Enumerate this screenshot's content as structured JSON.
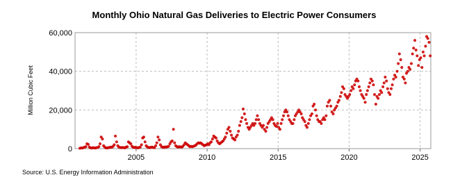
{
  "chart_data": {
    "type": "scatter",
    "title": "Monthly Ohio Natural Gas Deliveries to Electric Power Consumers",
    "y_label": "Million Cubic Feet",
    "source": "Source: U.S. Energy Information Administration",
    "color": "#cc0000",
    "grid": true,
    "xlim": [
      2000.7,
      2025.75
    ],
    "ylim": [
      0,
      60000
    ],
    "xticks": [
      2005,
      2010,
      2015,
      2020,
      2025
    ],
    "yticks": [
      0,
      {
        "value": 20000,
        "label": "20,000"
      },
      {
        "value": 40000,
        "label": "40,000"
      },
      {
        "value": 60000,
        "label": "60,000"
      }
    ],
    "x": [
      2001.04,
      2001.13,
      2001.21,
      2001.29,
      2001.38,
      2001.46,
      2001.54,
      2001.63,
      2001.71,
      2001.79,
      2001.88,
      2001.96,
      2002.04,
      2002.13,
      2002.21,
      2002.29,
      2002.38,
      2002.46,
      2002.54,
      2002.63,
      2002.71,
      2002.79,
      2002.88,
      2002.96,
      2003.04,
      2003.13,
      2003.21,
      2003.29,
      2003.38,
      2003.46,
      2003.54,
      2003.63,
      2003.71,
      2003.79,
      2003.88,
      2003.96,
      2004.04,
      2004.13,
      2004.21,
      2004.29,
      2004.38,
      2004.46,
      2004.54,
      2004.63,
      2004.71,
      2004.79,
      2004.88,
      2004.96,
      2005.04,
      2005.13,
      2005.21,
      2005.29,
      2005.38,
      2005.46,
      2005.54,
      2005.63,
      2005.71,
      2005.79,
      2005.88,
      2005.96,
      2006.04,
      2006.13,
      2006.21,
      2006.29,
      2006.38,
      2006.46,
      2006.54,
      2006.63,
      2006.71,
      2006.79,
      2006.88,
      2006.96,
      2007.04,
      2007.13,
      2007.21,
      2007.29,
      2007.38,
      2007.46,
      2007.54,
      2007.63,
      2007.71,
      2007.79,
      2007.88,
      2007.96,
      2008.04,
      2008.13,
      2008.21,
      2008.29,
      2008.38,
      2008.46,
      2008.54,
      2008.63,
      2008.71,
      2008.79,
      2008.88,
      2008.96,
      2009.04,
      2009.13,
      2009.21,
      2009.29,
      2009.38,
      2009.46,
      2009.54,
      2009.63,
      2009.71,
      2009.79,
      2009.88,
      2009.96,
      2010.04,
      2010.13,
      2010.21,
      2010.29,
      2010.38,
      2010.46,
      2010.54,
      2010.63,
      2010.71,
      2010.79,
      2010.88,
      2010.96,
      2011.04,
      2011.13,
      2011.21,
      2011.29,
      2011.38,
      2011.46,
      2011.54,
      2011.63,
      2011.71,
      2011.79,
      2011.88,
      2011.96,
      2012.04,
      2012.13,
      2012.21,
      2012.29,
      2012.38,
      2012.46,
      2012.54,
      2012.63,
      2012.71,
      2012.79,
      2012.88,
      2012.96,
      2013.04,
      2013.13,
      2013.21,
      2013.29,
      2013.38,
      2013.46,
      2013.54,
      2013.63,
      2013.71,
      2013.79,
      2013.88,
      2013.96,
      2014.04,
      2014.13,
      2014.21,
      2014.29,
      2014.38,
      2014.46,
      2014.54,
      2014.63,
      2014.71,
      2014.79,
      2014.88,
      2014.96,
      2015.04,
      2015.13,
      2015.21,
      2015.29,
      2015.38,
      2015.46,
      2015.54,
      2015.63,
      2015.71,
      2015.79,
      2015.88,
      2015.96,
      2016.04,
      2016.13,
      2016.21,
      2016.29,
      2016.38,
      2016.46,
      2016.54,
      2016.63,
      2016.71,
      2016.79,
      2016.88,
      2016.96,
      2017.04,
      2017.13,
      2017.21,
      2017.29,
      2017.38,
      2017.46,
      2017.54,
      2017.63,
      2017.71,
      2017.79,
      2017.88,
      2017.96,
      2018.04,
      2018.13,
      2018.21,
      2018.29,
      2018.38,
      2018.46,
      2018.54,
      2018.63,
      2018.71,
      2018.79,
      2018.88,
      2018.96,
      2019.04,
      2019.13,
      2019.21,
      2019.29,
      2019.38,
      2019.46,
      2019.54,
      2019.63,
      2019.71,
      2019.79,
      2019.88,
      2019.96,
      2020.04,
      2020.13,
      2020.21,
      2020.29,
      2020.38,
      2020.46,
      2020.54,
      2020.63,
      2020.71,
      2020.79,
      2020.88,
      2020.96,
      2021.04,
      2021.13,
      2021.21,
      2021.29,
      2021.38,
      2021.46,
      2021.54,
      2021.63,
      2021.71,
      2021.79,
      2021.88,
      2021.96,
      2022.04,
      2022.13,
      2022.21,
      2022.29,
      2022.38,
      2022.46,
      2022.54,
      2022.63,
      2022.71,
      2022.79,
      2022.88,
      2022.96,
      2023.04,
      2023.13,
      2023.21,
      2023.29,
      2023.38,
      2023.46,
      2023.54,
      2023.63,
      2023.71,
      2023.79,
      2023.88,
      2023.96,
      2024.04,
      2024.13,
      2024.21,
      2024.29,
      2024.38,
      2024.46,
      2024.54,
      2024.63,
      2024.71,
      2024.79,
      2024.88,
      2024.96,
      2025.04,
      2025.13,
      2025.21,
      2025.29,
      2025.38,
      2025.46,
      2025.54,
      2025.63,
      2025.71
    ],
    "values": [
      200,
      400,
      300,
      500,
      800,
      1000,
      2500,
      2200,
      800,
      400,
      300,
      500,
      400,
      300,
      500,
      600,
      1000,
      2500,
      6000,
      5000,
      1500,
      800,
      400,
      300,
      500,
      600,
      800,
      700,
      1200,
      2000,
      6500,
      3500,
      1500,
      800,
      600,
      500,
      600,
      500,
      400,
      800,
      1000,
      3500,
      3000,
      2500,
      1200,
      800,
      500,
      700,
      500,
      400,
      600,
      800,
      2000,
      5500,
      6000,
      3500,
      1500,
      900,
      600,
      500,
      700,
      800,
      600,
      500,
      1500,
      3000,
      6000,
      4500,
      2000,
      1000,
      800,
      600,
      900,
      800,
      1000,
      1200,
      2500,
      3500,
      4000,
      10000,
      3000,
      1500,
      1000,
      800,
      1000,
      900,
      800,
      1200,
      2000,
      3000,
      2500,
      2000,
      1500,
      1000,
      1200,
      1000,
      1200,
      1500,
      1800,
      2500,
      3000,
      2800,
      3000,
      2500,
      2000,
      1500,
      1800,
      2000,
      2500,
      2000,
      3000,
      3500,
      5000,
      6500,
      6000,
      5500,
      4000,
      3000,
      2500,
      3000,
      3500,
      4000,
      5000,
      6000,
      8000,
      10000,
      11000,
      9000,
      7000,
      5500,
      5000,
      4500,
      6000,
      7000,
      9000,
      12000,
      14000,
      16000,
      20500,
      18000,
      15000,
      13000,
      11000,
      10000,
      11000,
      12000,
      13000,
      12000,
      13000,
      15000,
      17000,
      15000,
      13000,
      12000,
      11000,
      12000,
      10000,
      9000,
      11000,
      13000,
      14000,
      15000,
      16000,
      15000,
      13000,
      12000,
      11500,
      13000,
      11000,
      10000,
      13000,
      15000,
      17000,
      19000,
      20000,
      19000,
      17000,
      15000,
      14000,
      13000,
      13000,
      15000,
      17000,
      18000,
      19000,
      20000,
      19000,
      18000,
      16000,
      15000,
      14000,
      12000,
      11000,
      13000,
      15000,
      17000,
      18000,
      22000,
      23000,
      20000,
      17000,
      15000,
      14000,
      14000,
      13000,
      15000,
      16000,
      15000,
      17000,
      22000,
      24000,
      25000,
      22000,
      19000,
      18000,
      20000,
      21000,
      22000,
      24000,
      25000,
      27000,
      29000,
      32000,
      31000,
      28000,
      27000,
      26000,
      27000,
      28000,
      30000,
      32000,
      31000,
      33000,
      35000,
      36000,
      35000,
      32000,
      30000,
      28000,
      27000,
      26000,
      24000,
      28000,
      30000,
      32000,
      34000,
      36000,
      35000,
      33000,
      28000,
      23000,
      27000,
      26000,
      28000,
      30000,
      29000,
      32000,
      34000,
      37000,
      35000,
      31000,
      29000,
      28000,
      31000,
      33000,
      36000,
      38000,
      37000,
      40000,
      44000,
      49000,
      46000,
      42000,
      37000,
      36000,
      34000,
      39000,
      40000,
      42000,
      41000,
      44000,
      49000,
      52000,
      56000,
      51000,
      48000,
      43000,
      46000,
      47000,
      42000,
      50000,
      48000,
      53000,
      58000,
      57000,
      55000,
      48000
    ]
  }
}
